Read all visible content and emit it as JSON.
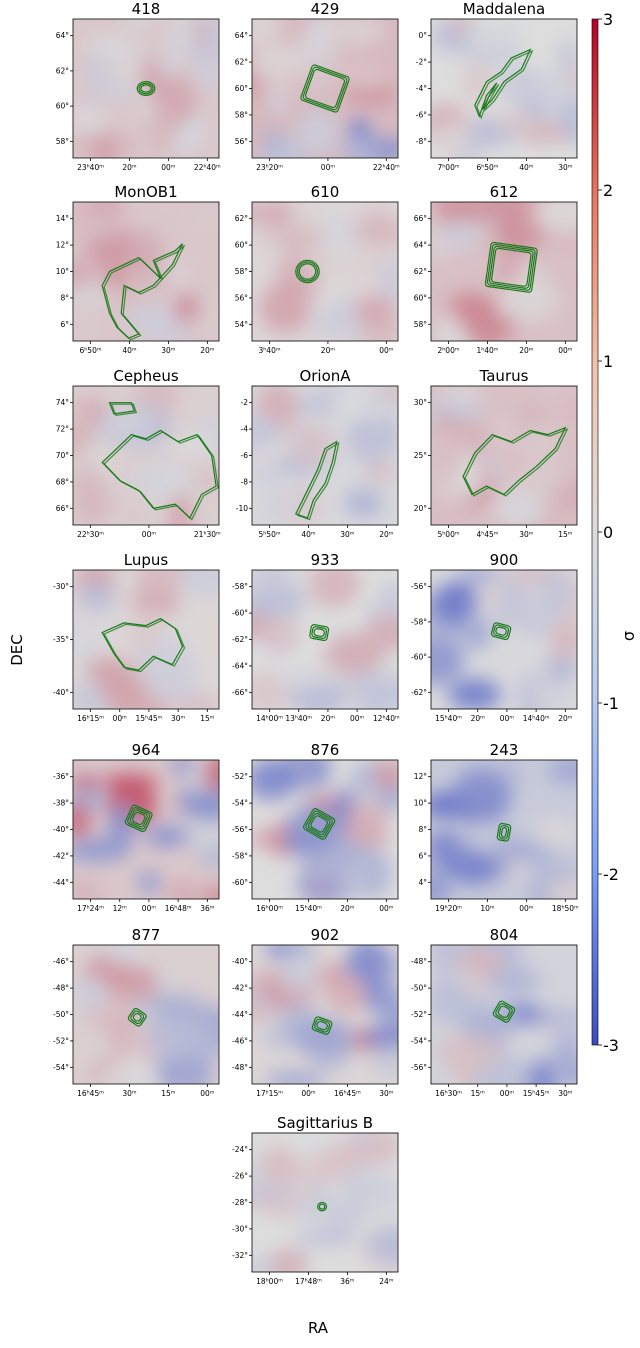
{
  "chart_data": {
    "type": "heatmap",
    "xlabel": "RA",
    "ylabel": "DEC",
    "colorbar": {
      "label": "σ",
      "range": [
        -3,
        3
      ],
      "ticks": [
        "3",
        "2",
        "1",
        "0",
        "-1",
        "-2",
        "-3"
      ],
      "colormap": [
        "#3b4cc0",
        "#dddddd",
        "#b40426"
      ]
    },
    "contour_color": "#1a7a1a",
    "panels": [
      {
        "title": "418",
        "yticks": [
          "64°",
          "62°",
          "60°",
          "58°"
        ],
        "xticks": [
          "23ʰ40ᵐ",
          "20ᵐ",
          "00ᵐ",
          "22ʰ40ᵐ"
        ],
        "mean_sigma": 0.3,
        "gradient": "none"
      },
      {
        "title": "429",
        "yticks": [
          "64°",
          "62°",
          "60°",
          "58°",
          "56°"
        ],
        "xticks": [
          "23ʰ20ᵐ",
          "00ᵐ",
          "22ʰ40ᵐ"
        ],
        "mean_sigma": 0.5,
        "gradient": "blue-bottom"
      },
      {
        "title": "Maddalena",
        "yticks": [
          "0°",
          "-2°",
          "-4°",
          "-6°",
          "-8°"
        ],
        "xticks": [
          "7ʰ00ᵐ",
          "6ʰ50ᵐ",
          "40ᵐ",
          "30ᵐ"
        ],
        "mean_sigma": 0.0,
        "gradient": "none"
      },
      {
        "title": "MonOB1",
        "yticks": [
          "14°",
          "12°",
          "10°",
          "8°",
          "6°"
        ],
        "xticks": [
          "6ʰ50ᵐ",
          "40ᵐ",
          "30ᵐ",
          "20ᵐ"
        ],
        "mean_sigma": 0.3,
        "gradient": "none"
      },
      {
        "title": "610",
        "yticks": [
          "62°",
          "60°",
          "58°",
          "56°",
          "54°"
        ],
        "xticks": [
          "3ʰ40ᵐ",
          "20ᵐ",
          "00ᵐ"
        ],
        "mean_sigma": 0.1,
        "gradient": "none"
      },
      {
        "title": "612",
        "yticks": [
          "66°",
          "64°",
          "62°",
          "60°",
          "58°"
        ],
        "xticks": [
          "2ʰ00ᵐ",
          "1ʰ40ᵐ",
          "20ᵐ",
          "00ᵐ"
        ],
        "mean_sigma": 0.4,
        "gradient": "none"
      },
      {
        "title": "Cepheus",
        "yticks": [
          "74°",
          "72°",
          "70°",
          "68°",
          "66°"
        ],
        "xticks": [
          "22ʰ30ᵐ",
          "00ᵐ",
          "21ʰ30ᵐ"
        ],
        "mean_sigma": 0.2,
        "gradient": "none"
      },
      {
        "title": "OrionA",
        "yticks": [
          "-2",
          "-4",
          "-6",
          "-8",
          "-10"
        ],
        "xticks": [
          "5ʰ50ᵐ",
          "40ᵐ",
          "30ᵐ",
          "20ᵐ"
        ],
        "mean_sigma": -0.1,
        "gradient": "none"
      },
      {
        "title": "Taurus",
        "yticks": [
          "30°",
          "25°",
          "20°"
        ],
        "xticks": [
          "5ʰ00ᵐ",
          "4ʰ45ᵐ",
          "30ᵐ",
          "15ᵐ"
        ],
        "mean_sigma": 0.4,
        "gradient": "none"
      },
      {
        "title": "Lupus",
        "yticks": [
          "-30°",
          "-35°",
          "-40°"
        ],
        "xticks": [
          "16ʰ15ᵐ",
          "00ᵐ",
          "15ʰ45ᵐ",
          "30ᵐ",
          "15ᵐ"
        ],
        "mean_sigma": 0.1,
        "gradient": "none"
      },
      {
        "title": "933",
        "yticks": [
          "-58°",
          "-60°",
          "-62°",
          "-64°",
          "-66°"
        ],
        "xticks": [
          "14ʰ00ᵐ",
          "13ʰ40ᵐ",
          "20ᵐ",
          "00ᵐ",
          "12ʰ40ᵐ"
        ],
        "mean_sigma": 0.0,
        "gradient": "none"
      },
      {
        "title": "900",
        "yticks": [
          "-56°",
          "-58°",
          "-60°",
          "-62°"
        ],
        "xticks": [
          "15ʰ40ᵐ",
          "20ᵐ",
          "00ᵐ",
          "14ʰ40ᵐ",
          "20ᵐ"
        ],
        "mean_sigma": -0.1,
        "gradient": "blue-left"
      },
      {
        "title": "964",
        "yticks": [
          "-36°",
          "-38°",
          "-40°",
          "-42°",
          "-44°"
        ],
        "xticks": [
          "17ʰ24ᵐ",
          "12ᵐ",
          "00ᵐ",
          "16ʰ48ᵐ",
          "36ᵐ"
        ],
        "mean_sigma": 0.3,
        "gradient": "mixed"
      },
      {
        "title": "876",
        "yticks": [
          "-52°",
          "-54°",
          "-56°",
          "-58°",
          "-60°"
        ],
        "xticks": [
          "16ʰ00ᵐ",
          "15ʰ40ᵐ",
          "20ᵐ",
          "00ᵐ"
        ],
        "mean_sigma": 0.0,
        "gradient": "mixed"
      },
      {
        "title": "243",
        "yticks": [
          "12°",
          "10°",
          "8°",
          "6°",
          "4°"
        ],
        "xticks": [
          "19ʰ20ᵐ",
          "10ᵐ",
          "00ᵐ",
          "18ʰ50ᵐ"
        ],
        "mean_sigma": -0.4,
        "gradient": "blue-left"
      },
      {
        "title": "877",
        "yticks": [
          "-46°",
          "-48°",
          "-50°",
          "-52°",
          "-54°"
        ],
        "xticks": [
          "16ʰ45ᵐ",
          "30ᵐ",
          "15ᵐ",
          "00ᵐ"
        ],
        "mean_sigma": 0.2,
        "gradient": "blue-right"
      },
      {
        "title": "902",
        "yticks": [
          "-40°",
          "-42°",
          "-44°",
          "-46°",
          "-48°"
        ],
        "xticks": [
          "17ʰ15ᵐ",
          "00ᵐ",
          "16ʰ45ᵐ",
          "30ᵐ"
        ],
        "mean_sigma": 0.1,
        "gradient": "mixed"
      },
      {
        "title": "804",
        "yticks": [
          "-48°",
          "-50°",
          "-52°",
          "-54°",
          "-56°"
        ],
        "xticks": [
          "16ʰ30ᵐ",
          "15ᵐ",
          "00ᵐ",
          "15ʰ45ᵐ",
          "30ᵐ"
        ],
        "mean_sigma": -0.2,
        "gradient": "blue-right"
      },
      {
        "title": "Sagittarius B",
        "yticks": [
          "-24°",
          "-26°",
          "-28°",
          "-30°",
          "-32°"
        ],
        "xticks": [
          "18ʰ00ᵐ",
          "17ʰ48ᵐ",
          "36ᵐ",
          "24ᵐ"
        ],
        "mean_sigma": 0.0,
        "gradient": "none"
      }
    ]
  }
}
